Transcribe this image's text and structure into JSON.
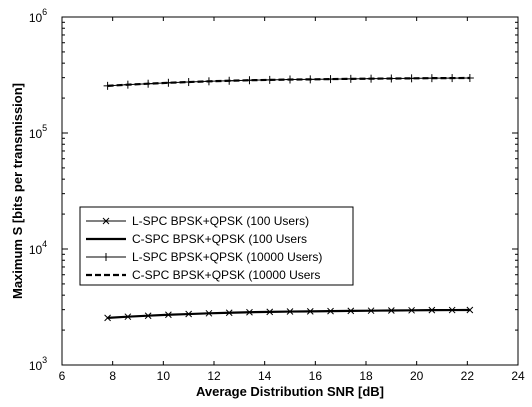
{
  "chart_data": {
    "type": "line",
    "title": "",
    "xlabel": "Average Distribution SNR [dB]",
    "ylabel": "Maximum S [bits per transmission]",
    "xlim": [
      6,
      24
    ],
    "ylim": [
      1000,
      1000000
    ],
    "yscale": "log",
    "grid": false,
    "legend_position": "left",
    "x_ticks": [
      "6",
      "8",
      "10",
      "12",
      "14",
      "16",
      "18",
      "20",
      "22",
      "24"
    ],
    "y_ticks": [
      {
        "base": "10",
        "exp": "3",
        "value": 1000
      },
      {
        "base": "10",
        "exp": "4",
        "value": 10000
      },
      {
        "base": "10",
        "exp": "5",
        "value": 100000
      },
      {
        "base": "10",
        "exp": "6",
        "value": 1000000
      }
    ],
    "x": [
      7.8,
      8.6,
      9.4,
      10.2,
      11.0,
      11.8,
      12.6,
      13.4,
      14.2,
      15.0,
      15.8,
      16.6,
      17.4,
      18.2,
      19.0,
      19.8,
      20.6,
      21.4,
      22.1
    ],
    "series": [
      {
        "name": "L-SPC BPSK+QPSK (100 Users)",
        "style": "solid-thin",
        "marker": "x",
        "values": [
          2550,
          2610,
          2660,
          2710,
          2750,
          2790,
          2820,
          2850,
          2870,
          2890,
          2900,
          2915,
          2930,
          2940,
          2950,
          2960,
          2970,
          2975,
          2980
        ]
      },
      {
        "name": "C-SPC BPSK+QPSK (100 Users",
        "style": "solid-thick",
        "marker": "none",
        "values": [
          2550,
          2610,
          2660,
          2710,
          2750,
          2790,
          2820,
          2850,
          2870,
          2890,
          2900,
          2915,
          2930,
          2940,
          2950,
          2960,
          2970,
          2975,
          2980
        ]
      },
      {
        "name": "L-SPC BPSK+QPSK (10000 Users)",
        "style": "solid-thin",
        "marker": "+",
        "values": [
          255000,
          261000,
          266000,
          271000,
          275000,
          279000,
          282000,
          285000,
          287000,
          289000,
          290000,
          291500,
          293000,
          294000,
          295000,
          296000,
          297000,
          297500,
          298000
        ]
      },
      {
        "name": "C-SPC BPSK+QPSK (10000 Users",
        "style": "dashed-thick",
        "marker": "none",
        "values": [
          255000,
          261000,
          266000,
          271000,
          275000,
          279000,
          282000,
          285000,
          287000,
          289000,
          290000,
          291500,
          293000,
          294000,
          295000,
          296000,
          297000,
          297500,
          298000
        ]
      }
    ],
    "colors": {
      "line": "#000000",
      "axes": "#000000",
      "background": "#ffffff"
    }
  }
}
